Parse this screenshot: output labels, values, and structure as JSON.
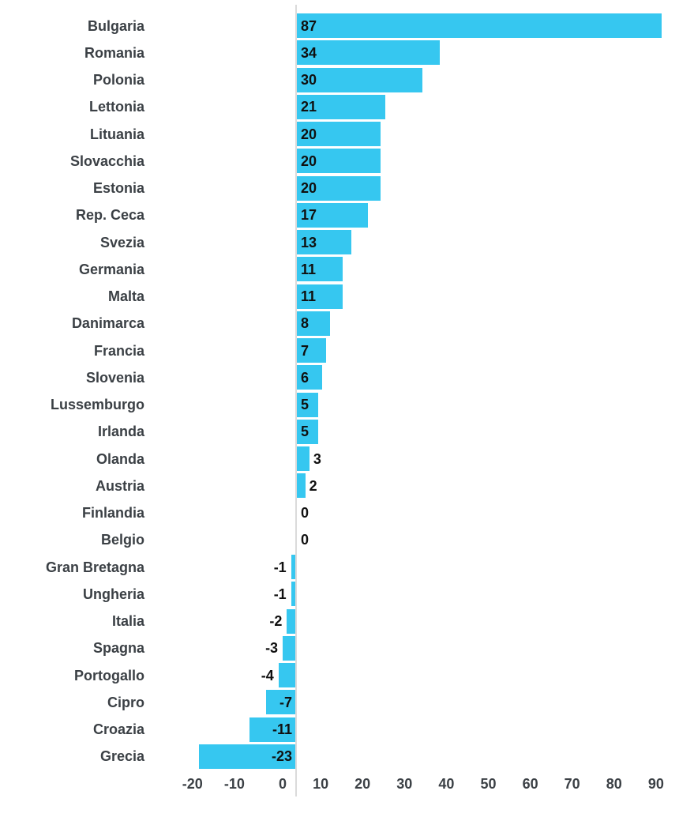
{
  "chart_data": {
    "type": "bar",
    "orientation": "horizontal",
    "title": "",
    "xlabel": "",
    "ylabel": "",
    "categories": [
      "Bulgaria",
      "Romania",
      "Polonia",
      "Lettonia",
      "Lituania",
      "Slovacchia",
      "Estonia",
      "Rep. Ceca",
      "Svezia",
      "Germania",
      "Malta",
      "Danimarca",
      "Francia",
      "Slovenia",
      "Lussemburgo",
      "Irlanda",
      "Olanda",
      "Austria",
      "Finlandia",
      "Belgio",
      "Gran Bretagna",
      "Ungheria",
      "Italia",
      "Spagna",
      "Portogallo",
      "Cipro",
      "Croazia",
      "Grecia"
    ],
    "values": [
      87,
      34,
      30,
      21,
      20,
      20,
      20,
      17,
      13,
      11,
      11,
      8,
      7,
      6,
      5,
      5,
      3,
      2,
      0,
      0,
      -1,
      -1,
      -2,
      -3,
      -4,
      -7,
      -11,
      -23
    ],
    "x_ticks": [
      -20,
      -10,
      0,
      10,
      20,
      30,
      40,
      50,
      60,
      70,
      80,
      90
    ],
    "xlim": [
      -24,
      94
    ],
    "grid": false,
    "legend": "none",
    "data_labels": "on",
    "colors": {
      "bar": "#36C7F0",
      "category_label": "#3B4045",
      "value_label": "#101010",
      "tick_label": "#3B4045",
      "zero_line": "#DBDBDB",
      "background": "#FFFFFF"
    }
  }
}
